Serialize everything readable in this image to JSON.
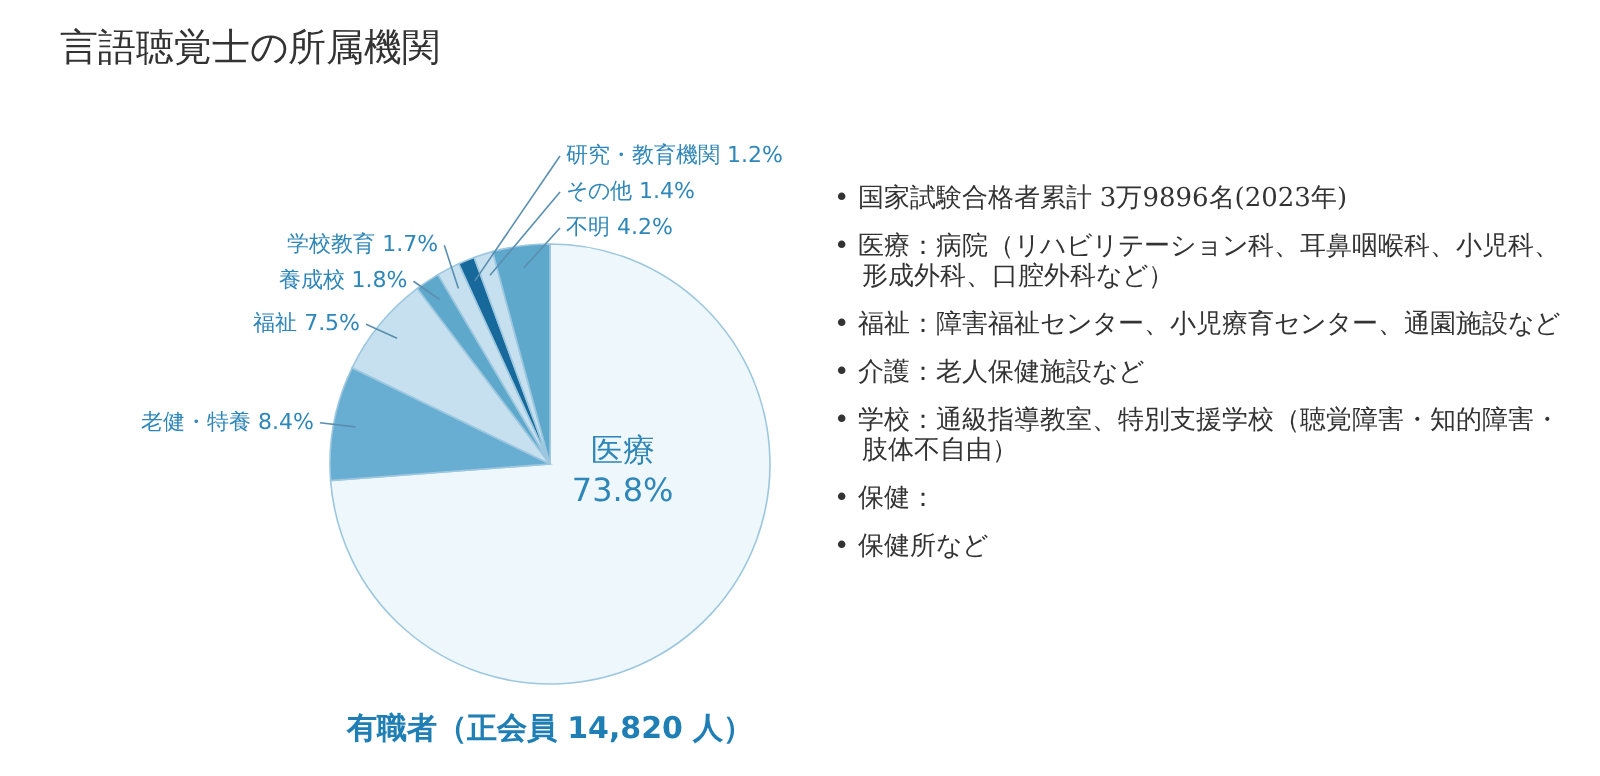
{
  "chart_data": [
    {
      "type": "pie",
      "title": "言語聴覚士の所属機関",
      "categories": [
        "医療",
        "老健・特養",
        "福祉",
        "養成校",
        "学校教育",
        "研究・教育機関",
        "その他",
        "不明"
      ],
      "values": [
        73.8,
        8.4,
        7.5,
        1.8,
        1.7,
        1.2,
        1.4,
        4.2
      ],
      "colors": [
        "#eef7fb",
        "#68aed3",
        "#c6e0ef",
        "#5ea8cc",
        "#c6e0ef",
        "#17699c",
        "#c6e0ef",
        "#5ea8cc"
      ],
      "value_labels": [
        "73.8%",
        "8.4%",
        "7.5%",
        "1.8%",
        "1.7%",
        "1.2%",
        "1.4%",
        "4.2%"
      ],
      "annotations": [
        "有職者（正会員 14,820 人）"
      ]
    },
    {
      "type": "other",
      "annotations": [
        "• 国家試験合格者累計 3万9896名(2023年)",
        "• 医療：病院（リハビリテーション科、耳鼻咽喉科、小児科、形成外科、口腔外科など）",
        "• 福祉：障害福祉センター、小児療育センター、通園施設など",
        "• 介護：老人保健施設など",
        "• 学校：通級指導教室、特別支援学校（聴覚障害・知的障害・肢体不自由）",
        "• 保健：",
        "• 保健所など"
      ]
    }
  ]
}
